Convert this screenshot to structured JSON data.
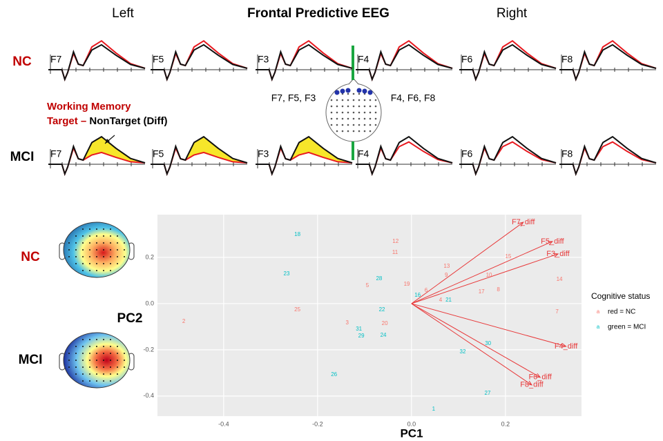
{
  "eeg_panel": {
    "title": "Frontal Predictive EEG",
    "left_label": "Left",
    "right_label": "Right",
    "rows": [
      {
        "label": "NC",
        "electrodes": [
          "F7",
          "F5",
          "F3",
          "F4",
          "F6",
          "F8"
        ]
      },
      {
        "label": "MCI",
        "electrodes": [
          "F7",
          "F5",
          "F3",
          "F4",
          "F6",
          "F8"
        ]
      }
    ],
    "legend": {
      "line1": "Working Memory",
      "line2_red": "Target –",
      "line2_black": "NonTarget (Diff)"
    },
    "montage_left": "F7, F5, F3",
    "montage_right": "F4, F6, F8"
  },
  "topo_panel": {
    "rows": [
      "NC",
      "MCI"
    ],
    "axis_label": "PC2"
  },
  "chart_data": {
    "type": "scatter",
    "xlabel": "PC1",
    "xlim": [
      -0.541,
      0.362
    ],
    "ylim": [
      -0.487,
      0.385
    ],
    "xticks": [
      -0.4,
      -0.2,
      {
        "value": 0,
        "label": "0.0"
      },
      0.2
    ],
    "yticks": [
      -0.4,
      -0.2,
      {
        "value": 0,
        "label": "0.0"
      },
      0.2
    ],
    "grid": true,
    "legend_title": "Cognitive status",
    "legend_position": "right",
    "series": [
      {
        "name": "red = NC",
        "color": "#f8766d",
        "labels": [
          "12",
          "11",
          "13",
          "9",
          "15",
          "10",
          "19",
          "5",
          "6",
          "17",
          "8",
          "14",
          "4",
          "25",
          "7",
          "2",
          "3",
          "20"
        ],
        "x": [
          -0.034,
          -0.035,
          0.075,
          0.074,
          0.206,
          0.165,
          -0.01,
          -0.094,
          0.031,
          0.149,
          0.185,
          0.315,
          0.062,
          -0.243,
          0.31,
          -0.485,
          -0.137,
          -0.057
        ],
        "values": [
          0.269,
          0.221,
          0.161,
          0.122,
          0.203,
          0.122,
          0.084,
          0.078,
          0.057,
          0.051,
          0.06,
          0.104,
          0.015,
          -0.027,
          -0.036,
          -0.078,
          -0.084,
          -0.087
        ]
      },
      {
        "name": "green = MCI",
        "color": "#00bfc4",
        "labels": [
          "18",
          "23",
          "28",
          "16",
          "21",
          "22",
          "31",
          "29",
          "24",
          "30",
          "32",
          "26",
          "27",
          "1"
        ],
        "x": [
          -0.243,
          -0.266,
          -0.069,
          0.013,
          0.079,
          -0.063,
          -0.112,
          -0.107,
          -0.06,
          0.163,
          0.109,
          -0.165,
          0.162,
          0.047
        ],
        "values": [
          0.299,
          0.128,
          0.107,
          0.036,
          0.015,
          -0.027,
          -0.11,
          -0.14,
          -0.137,
          -0.173,
          -0.209,
          -0.307,
          -0.388,
          -0.457
        ]
      }
    ],
    "loadings": {
      "color": "#e8393a",
      "labels": [
        "F7_diff",
        "F5_diff",
        "F3_diff",
        "F4_diff",
        "F6_diff",
        "F8_diff"
      ],
      "x": [
        0.238,
        0.3,
        0.312,
        0.329,
        0.274,
        0.256
      ],
      "values": [
        0.352,
        0.269,
        0.215,
        -0.185,
        -0.319,
        -0.352
      ]
    }
  }
}
